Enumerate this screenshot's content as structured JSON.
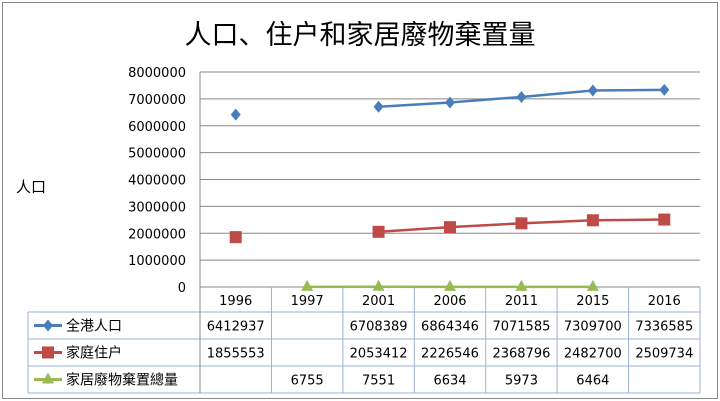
{
  "chart_data": {
    "type": "line",
    "title": "人口、住户和家居廢物棄置量",
    "ylabel": "人口",
    "xlabel": "",
    "ylim": [
      0,
      8000000
    ],
    "yticks": [
      "0",
      "1000000",
      "2000000",
      "3000000",
      "4000000",
      "5000000",
      "6000000",
      "7000000",
      "8000000"
    ],
    "categories": [
      "1996",
      "1997",
      "2001",
      "2006",
      "2011",
      "2015",
      "2016"
    ],
    "grid": true,
    "legend": "data-table",
    "series": [
      {
        "name": "全港人口",
        "color": "#4a7ebb",
        "marker": "diamond",
        "values": [
          6412937,
          null,
          6708389,
          6864346,
          7071585,
          7309700,
          7336585
        ]
      },
      {
        "name": "家庭住户",
        "color": "#be4b48",
        "marker": "square",
        "values": [
          1855553,
          null,
          2053412,
          2226546,
          2368796,
          2482700,
          2509734
        ]
      },
      {
        "name": "家居廢物棄置總量",
        "color": "#98b954",
        "marker": "triangle",
        "values": [
          null,
          6755,
          7551,
          6634,
          5973,
          6464,
          null
        ]
      }
    ]
  }
}
